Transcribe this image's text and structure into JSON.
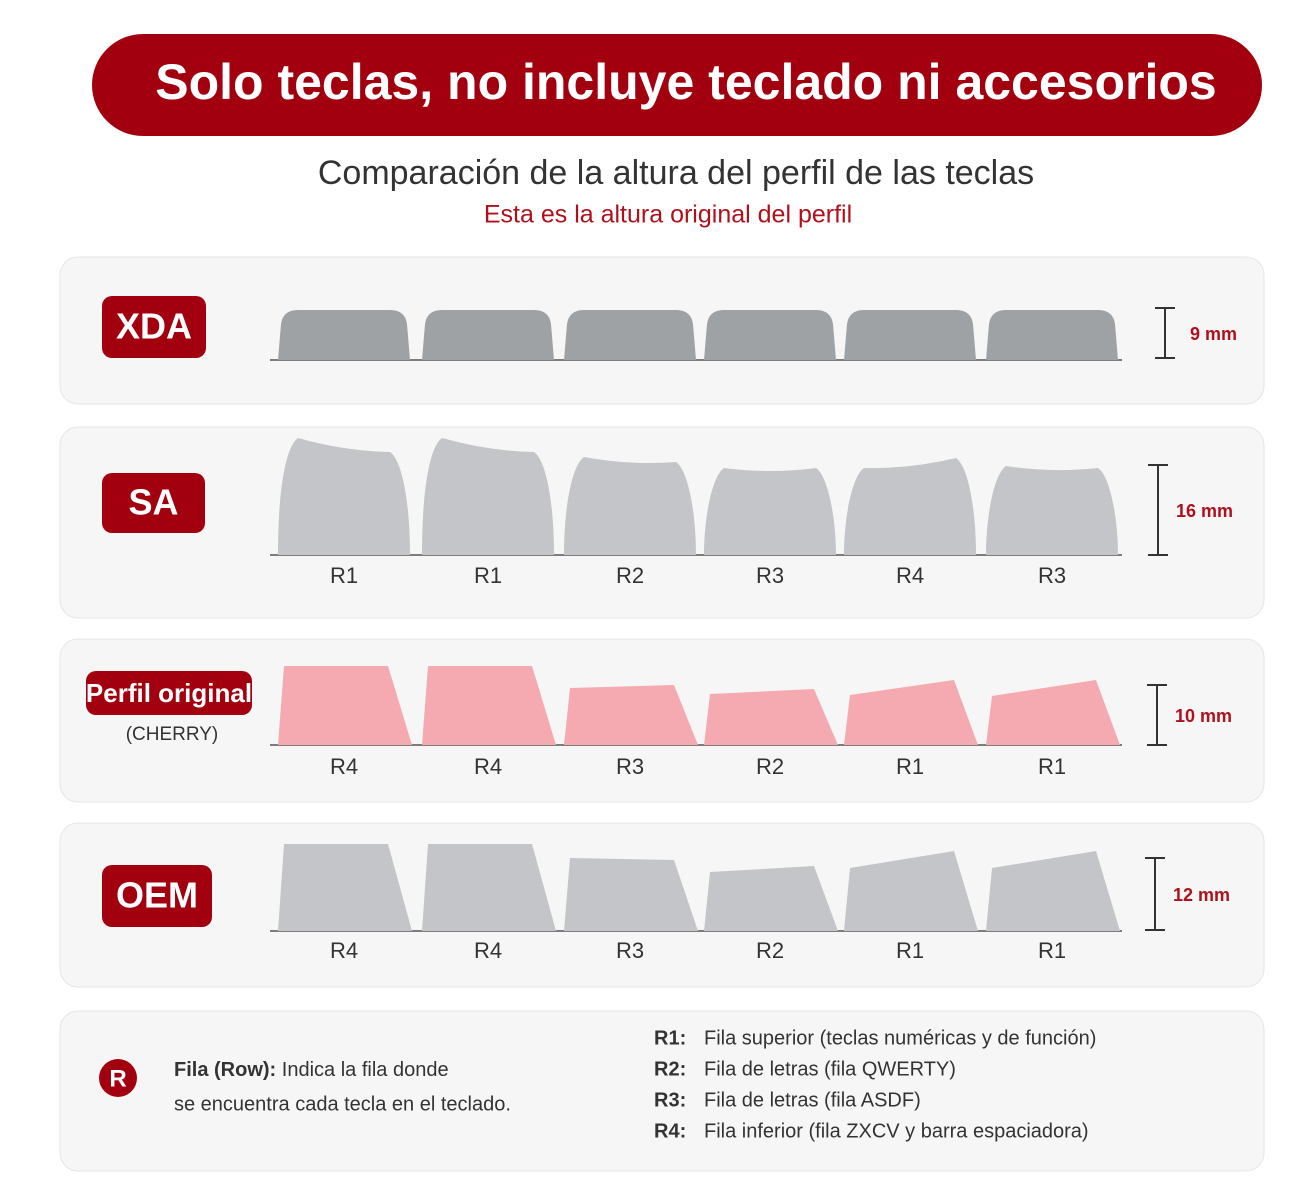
{
  "banner": "Solo teclas, no incluye teclado ni accesorios",
  "heading": {
    "title": "Comparación de la altura del perfil de las teclas",
    "subtitle": "Esta es la altura original del perfil"
  },
  "profiles": [
    {
      "name": "XDA",
      "height": "9 mm"
    },
    {
      "name": "SA",
      "height": "16 mm",
      "rows": [
        "R1",
        "R1",
        "R2",
        "R3",
        "R4",
        "R3"
      ]
    },
    {
      "name": "Perfil original",
      "note": "(CHERRY)",
      "height": "10 mm",
      "rows": [
        "R4",
        "R4",
        "R3",
        "R2",
        "R1",
        "R1"
      ]
    },
    {
      "name": "OEM",
      "height": "12 mm",
      "rows": [
        "R4",
        "R4",
        "R3",
        "R2",
        "R1",
        "R1"
      ]
    }
  ],
  "legend": {
    "icon": "R",
    "term": "Fila (Row):",
    "description": [
      "Indica la fila donde",
      "se encuentra cada tecla en el teclado."
    ],
    "rows": [
      {
        "key": "R1:",
        "text": "Fila superior (teclas numéricas y de función)"
      },
      {
        "key": "R2:",
        "text": "Fila de letras (fila QWERTY)"
      },
      {
        "key": "R3:",
        "text": "Fila de letras (fila ASDF)"
      },
      {
        "key": "R4:",
        "text": "Fila inferior (fila ZXCV y barra espaciadora)"
      }
    ]
  }
}
